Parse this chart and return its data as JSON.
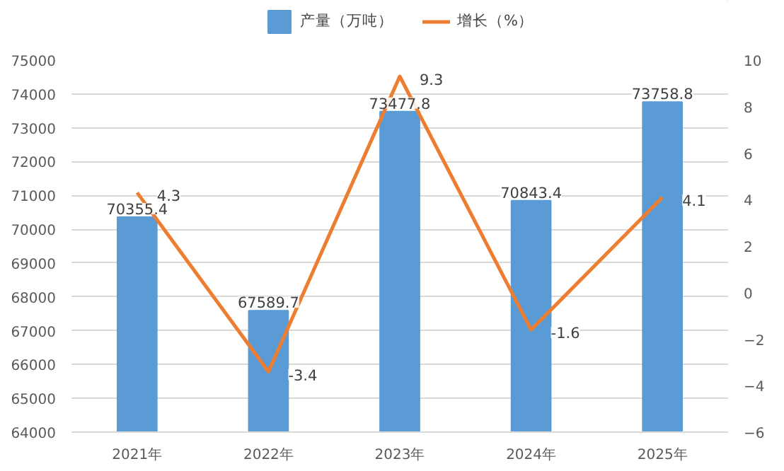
{
  "chart_data": {
    "type": "bar",
    "categories": [
      "2021年",
      "2022年",
      "2023年",
      "2024年",
      "2025年"
    ],
    "series": [
      {
        "name": "产量（万吨）",
        "color": "#5b9bd5",
        "values": [
          70355.4,
          67589.7,
          73477.8,
          70843.4,
          73758.8
        ]
      },
      {
        "name": "增长（%）",
        "type": "line",
        "axis": "y2",
        "color": "#ed7d31",
        "values": [
          4.3,
          -3.4,
          9.3,
          -1.6,
          4.1
        ]
      }
    ],
    "ylim": [
      64000,
      75000
    ],
    "yticks": [
      64000,
      65000,
      66000,
      67000,
      68000,
      69000,
      70000,
      71000,
      72000,
      73000,
      74000,
      75000
    ],
    "y2lim": [
      -6,
      10
    ],
    "y2ticks": [
      -6,
      -4,
      -2,
      0,
      2,
      4,
      6,
      8,
      10
    ],
    "grid": "y",
    "legend": "top",
    "data_labels": true,
    "marker": "none",
    "line_style": "solid"
  }
}
